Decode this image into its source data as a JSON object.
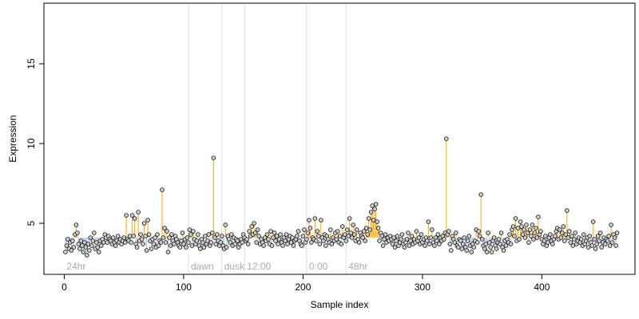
{
  "chart_data": {
    "type": "scatter",
    "xlabel": "Sample index",
    "ylabel": "Expression",
    "xlim": [
      -17,
      478
    ],
    "ylim": [
      1.8,
      18.8
    ],
    "x_ticks": [
      0,
      100,
      200,
      300,
      400
    ],
    "y_ticks": [
      5,
      10,
      15
    ],
    "baseline": 4.1,
    "grid": false,
    "stem_color_above": "#ffa500",
    "stem_color_below": "#a8c4ea",
    "point_fill": "#cccccc",
    "point_stroke": "#111111",
    "separators": [
      {
        "x": 104,
        "label": "dawn"
      },
      {
        "x": 132,
        "label": "dusk"
      },
      {
        "x": 151,
        "label": "12:00"
      },
      {
        "x": 203,
        "label": "0:00"
      },
      {
        "x": 236,
        "label": "48hr"
      }
    ],
    "start_label": "24hr",
    "points_y": [
      3.2,
      3.6,
      4.0,
      3.4,
      3.8,
      3.3,
      3.9,
      3.5,
      4.3,
      4.9,
      4.4,
      3.7,
      3.4,
      3.9,
      3.6,
      3.2,
      3.8,
      3.5,
      3.0,
      3.7,
      3.3,
      4.1,
      3.6,
      3.9,
      4.4,
      3.4,
      3.8,
      3.5,
      3.2,
      3.9,
      3.6,
      4.0,
      3.8,
      4.3,
      4.1,
      3.8,
      4.2,
      4.0,
      3.9,
      3.7,
      4.1,
      3.8,
      3.6,
      3.9,
      4.2,
      3.8,
      4.0,
      3.7,
      3.9,
      4.1,
      3.8,
      5.5,
      4.0,
      3.9,
      4.2,
      3.8,
      5.5,
      4.2,
      5.3,
      3.7,
      3.5,
      5.7,
      3.9,
      4.3,
      4.0,
      3.7,
      5.0,
      4.2,
      3.3,
      5.2,
      4.3,
      3.9,
      3.4,
      4.0,
      3.7,
      4.1,
      3.5,
      4.3,
      3.6,
      3.9,
      3.8,
      7.1,
      4.1,
      4.7,
      3.8,
      4.5,
      3.2,
      4.1,
      3.6,
      4.3,
      3.9,
      3.7,
      4.2,
      4.0,
      3.8,
      3.6,
      3.5,
      3.9,
      4.4,
      3.7,
      4.0,
      3.5,
      4.1,
      3.8,
      4.6,
      4.3,
      3.6,
      4.5,
      4.0,
      3.7,
      3.9,
      4.3,
      3.6,
      3.4,
      4.0,
      3.8,
      3.5,
      4.2,
      3.7,
      3.9,
      4.3,
      3.6,
      3.8,
      4.4,
      9.1,
      4.1,
      3.7,
      4.3,
      3.9,
      3.6,
      3.8,
      4.2,
      3.6,
      3.4,
      4.9,
      3.5,
      4.2,
      4.0,
      3.8,
      4.3,
      3.6,
      4.1,
      3.7,
      4.0,
      3.9,
      3.5,
      3.7,
      4.0,
      3.8,
      4.3,
      4.1,
      3.9,
      4.0,
      3.7,
      4.5,
      4.2,
      4.8,
      4.3,
      5.0,
      4.4,
      3.8,
      4.6,
      4.2,
      3.7,
      4.0,
      3.8,
      3.6,
      4.1,
      3.9,
      4.3,
      4.0,
      3.7,
      4.5,
      3.6,
      4.1,
      4.4,
      3.9,
      4.2,
      3.7,
      4.0,
      4.3,
      3.8,
      3.6,
      4.1,
      3.9,
      4.3,
      3.7,
      4.0,
      4.2,
      3.8,
      4.1,
      3.6,
      3.9,
      4.0,
      4.2,
      4.5,
      3.9,
      3.7,
      3.6,
      4.2,
      4.6,
      3.8,
      4.0,
      4.4,
      5.2,
      4.7,
      3.8,
      4.1,
      4.0,
      5.3,
      3.9,
      4.5,
      4.2,
      3.7,
      5.2,
      4.1,
      3.9,
      4.3,
      3.6,
      4.2,
      4.0,
      3.8,
      4.6,
      3.7,
      4.1,
      3.9,
      4.4,
      4.0,
      4.5,
      3.8,
      4.2,
      3.7,
      4.8,
      4.1,
      4.3,
      3.9,
      4.6,
      4.2,
      5.3,
      4.4,
      4.1,
      4.9,
      4.3,
      3.9,
      4.6,
      4.0,
      3.8,
      4.4,
      4.2,
      4.1,
      4.5,
      3.9,
      4.7,
      4.3,
      5.3,
      4.6,
      5.7,
      6.1,
      5.2,
      5.9,
      6.2,
      5.1,
      4.7,
      3.9,
      4.4,
      4.2,
      3.6,
      4.0,
      4.3,
      3.8,
      4.1,
      3.9,
      4.2,
      4.0,
      3.7,
      4.1,
      3.5,
      3.9,
      4.2,
      3.6,
      3.8,
      4.0,
      4.3,
      3.7,
      3.5,
      3.8,
      4.0,
      4.4,
      3.6,
      3.9,
      4.2,
      3.7,
      4.0,
      3.8,
      4.5,
      3.9,
      4.1,
      3.7,
      4.3,
      3.8,
      4.0,
      3.6,
      4.1,
      3.9,
      5.1,
      3.7,
      4.1,
      4.6,
      3.8,
      3.6,
      4.1,
      3.9,
      4.3,
      3.7,
      4.1,
      3.9,
      4.2,
      4.0,
      4.4,
      10.3,
      4.3,
      4.5,
      3.7,
      3.3,
      4.2,
      4.0,
      3.8,
      4.4,
      3.6,
      3.5,
      4.0,
      3.9,
      3.4,
      3.7,
      4.1,
      3.5,
      3.3,
      3.9,
      4.2,
      3.6,
      3.2,
      3.7,
      3.5,
      3.9,
      4.6,
      3.8,
      4.5,
      4.2,
      6.8,
      4.0,
      3.6,
      3.4,
      3.7,
      3.2,
      4.4,
      3.8,
      3.5,
      3.2,
      3.9,
      4.1,
      3.6,
      3.4,
      3.8,
      4.0,
      3.7,
      4.4,
      3.5,
      3.3,
      3.9,
      3.6,
      4.0,
      3.8,
      4.3,
      3.7,
      4.6,
      4.8,
      4.2,
      5.3,
      3.9,
      4.7,
      4.0,
      5.1,
      4.8,
      4.3,
      4.6,
      4.1,
      4.9,
      4.4,
      3.8,
      4.6,
      4.2,
      4.9,
      4.0,
      4.4,
      4.7,
      4.1,
      5.4,
      4.3,
      4.5,
      4.0,
      3.7,
      3.9,
      4.2,
      3.6,
      3.8,
      4.1,
      4.3,
      3.9,
      3.7,
      4.0,
      4.2,
      4.5,
      4.7,
      4.0,
      4.6,
      4.1,
      4.4,
      4.8,
      3.9,
      4.3,
      5.8,
      4.1,
      4.5,
      3.8,
      4.2,
      3.6,
      4.0,
      4.4,
      3.7,
      3.9,
      4.1,
      3.8,
      4.0,
      3.6,
      4.3,
      3.7,
      3.9,
      4.1,
      3.5,
      4.2,
      3.8,
      3.6,
      5.1,
      4.0,
      3.4,
      3.7,
      4.2,
      3.9,
      4.4,
      3.5,
      3.8,
      4.1,
      3.7,
      4.0,
      3.9,
      4.2,
      3.6,
      4.9,
      3.8,
      4.3,
      4.1,
      3.6,
      4.4
    ]
  }
}
